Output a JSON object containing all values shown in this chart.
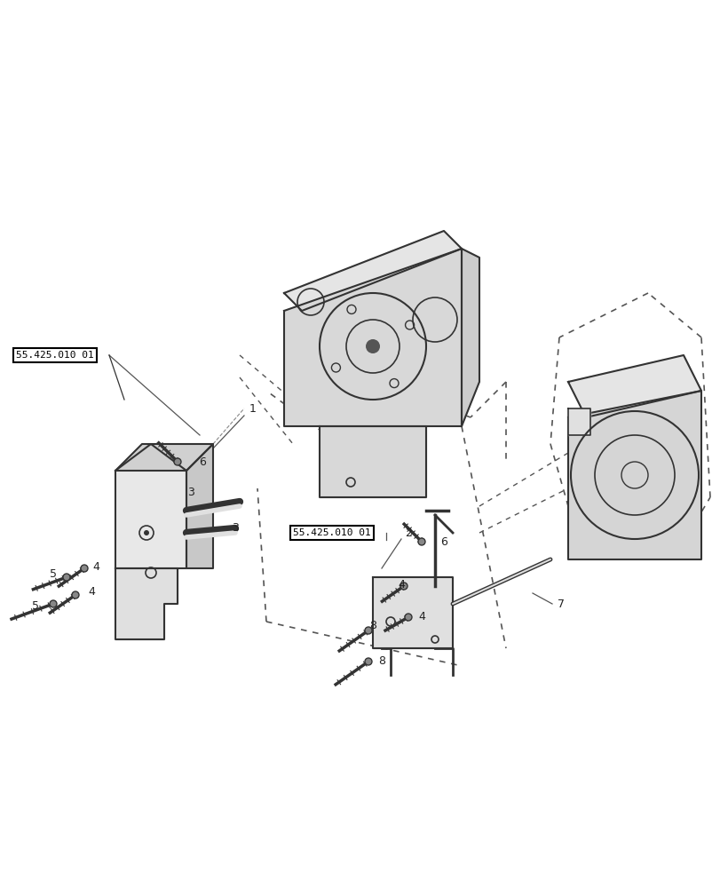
{
  "background_color": "#ffffff",
  "line_color": "#333333",
  "dashed_color": "#555555",
  "label_box_color": "#ffffff",
  "label_box_edge": "#000000",
  "figsize": [
    8.12,
    10.0
  ],
  "dpi": 100,
  "labels": {
    "ref_box_1": "55.425.010 01",
    "ref_box_2": "55.425.010 01",
    "num1": "1",
    "num2": "2",
    "num3a": "3",
    "num3b": "3",
    "num4a": "4",
    "num4b": "4",
    "num4c": "4",
    "num4d": "4",
    "num5a": "5",
    "num5b": "5",
    "num6a": "6",
    "num6b": "6",
    "num7": "7",
    "num8a": "8",
    "num8b": "8"
  }
}
